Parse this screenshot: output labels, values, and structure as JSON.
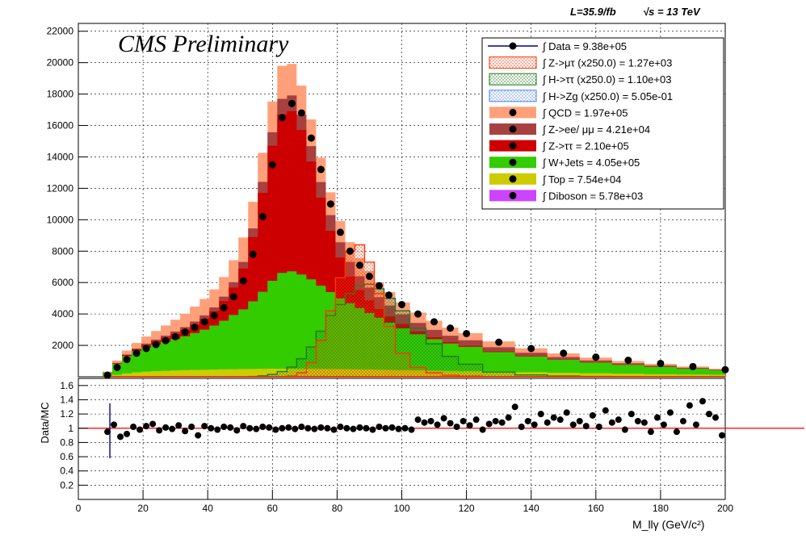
{
  "header": {
    "lumi": "L=35.9/fb",
    "energy": "√s = 13 TeV"
  },
  "main": {
    "watermark": "CMS Preliminary"
  },
  "colors": {
    "data": "#000000",
    "data_line": "#00008b",
    "zmt": "#ff3300",
    "htt": "#1e7a1e",
    "hzg": "#4d7fff",
    "qcd": "#ffa07a",
    "zll": "#a84040",
    "ztt": "#cc0000",
    "wjets": "#33cc00",
    "top": "#cccc00",
    "diboson": "#cc44ff",
    "ratio_line": "#ff0000"
  },
  "chart_data": [
    {
      "type": "area",
      "xlabel": "M_llγ (GeV/c²)",
      "ylabel": "",
      "xlim": [
        0,
        200
      ],
      "ylim": [
        0,
        22500
      ],
      "grid": true,
      "legend_position": "top-right",
      "x_ticks": [
        0,
        20,
        40,
        60,
        80,
        100,
        120,
        140,
        160,
        180,
        200
      ],
      "y_ticks": [
        2000,
        4000,
        6000,
        8000,
        10000,
        12000,
        14000,
        16000,
        18000,
        20000,
        22000
      ],
      "x": [
        9,
        12,
        15,
        18,
        21,
        24,
        27,
        30,
        33,
        36,
        39,
        42,
        45,
        48,
        51,
        54,
        57,
        60,
        63,
        66,
        69,
        72,
        75,
        78,
        81,
        84,
        87,
        90,
        93,
        96,
        100,
        105,
        110,
        115,
        120,
        130,
        140,
        150,
        160,
        170,
        180,
        190,
        200
      ],
      "series": [
        {
          "name": "Data = 9.38e+05",
          "key": "data",
          "style": "points",
          "values": [
            100,
            600,
            1100,
            1500,
            1800,
            2050,
            2300,
            2550,
            2850,
            3150,
            3500,
            3900,
            4400,
            5100,
            6100,
            7800,
            10200,
            13500,
            16500,
            17400,
            16800,
            15200,
            13200,
            11000,
            9200,
            8000,
            7100,
            6400,
            5800,
            5200,
            4600,
            4000,
            3500,
            3100,
            2750,
            2200,
            1800,
            1500,
            1250,
            1050,
            850,
            650,
            450
          ]
        },
        {
          "name": "Diboson = 5.78e+03",
          "key": "diboson",
          "style": "stack",
          "values": [
            5,
            10,
            15,
            20,
            25,
            28,
            30,
            32,
            34,
            36,
            38,
            40,
            42,
            44,
            46,
            48,
            50,
            52,
            54,
            56,
            56,
            56,
            55,
            54,
            52,
            50,
            48,
            46,
            44,
            42,
            40,
            36,
            33,
            30,
            28,
            24,
            20,
            17,
            14,
            12,
            10,
            8,
            6
          ]
        },
        {
          "name": "Top = 7.54e+04",
          "key": "top",
          "style": "stack",
          "values": [
            50,
            120,
            200,
            260,
            300,
            330,
            350,
            370,
            390,
            400,
            410,
            420,
            430,
            440,
            450,
            455,
            460,
            460,
            460,
            460,
            455,
            450,
            445,
            440,
            435,
            430,
            425,
            420,
            410,
            400,
            390,
            375,
            360,
            345,
            330,
            300,
            270,
            240,
            210,
            185,
            160,
            140,
            120
          ]
        },
        {
          "name": "W+Jets = 4.05e+05",
          "key": "wjets",
          "style": "stack",
          "values": [
            200,
            700,
            1100,
            1350,
            1550,
            1700,
            1850,
            2000,
            2150,
            2350,
            2550,
            2800,
            3100,
            3450,
            3800,
            4300,
            4900,
            5600,
            6100,
            6200,
            6000,
            5700,
            5300,
            4900,
            4500,
            4200,
            3900,
            3600,
            3300,
            3000,
            2650,
            2300,
            2000,
            1750,
            1550,
            1250,
            1000,
            820,
            680,
            560,
            460,
            360,
            280
          ]
        },
        {
          "name": "Z->ττ = 2.10e+05",
          "key": "ztt",
          "style": "stack",
          "values": [
            10,
            30,
            60,
            100,
            150,
            200,
            260,
            330,
            420,
            540,
            700,
            920,
            1250,
            1750,
            2600,
            4100,
            6300,
            8600,
            10100,
            10200,
            9200,
            7500,
            5600,
            3900,
            2600,
            1700,
            1150,
            800,
            560,
            400,
            280,
            180,
            120,
            80,
            55,
            30,
            18,
            10,
            6,
            4,
            3,
            2,
            1
          ]
        },
        {
          "name": "Z->ee/ μμ = 4.21e+04",
          "key": "zll",
          "style": "stack",
          "values": [
            10,
            25,
            45,
            70,
            90,
            110,
            130,
            150,
            170,
            190,
            210,
            240,
            280,
            340,
            420,
            540,
            700,
            860,
            980,
            1000,
            980,
            980,
            1000,
            1000,
            980,
            940,
            880,
            820,
            760,
            700,
            620,
            540,
            470,
            410,
            360,
            280,
            220,
            170,
            130,
            100,
            80,
            60,
            45
          ]
        },
        {
          "name": "QCD = 1.97e+05",
          "key": "qcd",
          "style": "stack",
          "values": [
            50,
            150,
            250,
            350,
            450,
            550,
            650,
            750,
            850,
            950,
            1050,
            1150,
            1250,
            1400,
            1550,
            1700,
            1850,
            1950,
            2100,
            2000,
            1850,
            1700,
            1550,
            1450,
            1350,
            1250,
            1150,
            1050,
            950,
            850,
            750,
            650,
            580,
            520,
            460,
            370,
            290,
            230,
            180,
            140,
            110,
            85,
            60
          ]
        },
        {
          "name": "H->Zg (x250.0) = 5.05e-01",
          "key": "hzg",
          "style": "line",
          "values": [
            0,
            0,
            0,
            0,
            0,
            0,
            0,
            0,
            0,
            0,
            0,
            0,
            0,
            0,
            0,
            0,
            0,
            0,
            0,
            0,
            0,
            0,
            0,
            0,
            0,
            0,
            0,
            0,
            0,
            0,
            0,
            0,
            0,
            0,
            0,
            0,
            0,
            0,
            0,
            0,
            0,
            0,
            0
          ]
        },
        {
          "name": "H->ττ (x250.0) = 1.10e+03",
          "key": "htt",
          "style": "line",
          "values": [
            0,
            0,
            0,
            0,
            0,
            0,
            0,
            0,
            0,
            0,
            0,
            0,
            0,
            0,
            0,
            20,
            60,
            150,
            330,
            620,
            1150,
            1900,
            2900,
            3900,
            4600,
            5300,
            5800,
            5900,
            5600,
            5000,
            4200,
            3100,
            2100,
            1300,
            800,
            300,
            120,
            50,
            20,
            10,
            5,
            2,
            0
          ]
        },
        {
          "name": "Z->μτ (x250.0) = 1.27e+03",
          "key": "zmt",
          "style": "line",
          "values": [
            0,
            0,
            0,
            0,
            0,
            0,
            0,
            0,
            0,
            0,
            0,
            0,
            0,
            0,
            0,
            0,
            0,
            0,
            0,
            50,
            250,
            900,
            2300,
            4200,
            6300,
            8000,
            8400,
            7300,
            5300,
            3200,
            1500,
            600,
            250,
            100,
            40,
            10,
            0,
            0,
            0,
            0,
            0,
            0,
            0
          ]
        }
      ]
    },
    {
      "type": "scatter",
      "xlabel": "",
      "ylabel": "Data/MC",
      "xlim": [
        0,
        200
      ],
      "ylim": [
        0,
        1.7
      ],
      "grid": true,
      "reference_line": 1,
      "x_ticks": [
        0,
        20,
        40,
        60,
        80,
        100,
        120,
        140,
        160,
        180,
        200
      ],
      "y_ticks": [
        0.2,
        0.4,
        0.6,
        0.8,
        1,
        1.2,
        1.4,
        1.6
      ],
      "series": [
        {
          "name": "",
          "key": "ratio",
          "x": [
            9,
            11,
            13,
            15,
            17,
            19,
            21,
            23,
            25,
            27,
            29,
            31,
            33,
            35,
            37,
            39,
            41,
            43,
            45,
            47,
            49,
            51,
            53,
            55,
            57,
            59,
            61,
            63,
            65,
            67,
            69,
            71,
            73,
            75,
            77,
            79,
            81,
            83,
            85,
            87,
            89,
            91,
            93,
            95,
            97,
            99,
            101,
            103,
            105,
            107,
            109,
            111,
            113,
            115,
            117,
            119,
            121,
            123,
            125,
            127,
            129,
            131,
            133,
            135,
            137,
            139,
            141,
            143,
            145,
            147,
            149,
            151,
            153,
            155,
            157,
            159,
            161,
            163,
            165,
            167,
            169,
            171,
            173,
            175,
            177,
            179,
            181,
            183,
            185,
            187,
            189,
            191,
            193,
            195,
            197,
            199
          ],
          "values": [
            0.95,
            1.05,
            0.88,
            0.92,
            1.02,
            0.98,
            1.03,
            1.06,
            0.97,
            1.01,
            0.99,
            1.04,
            0.96,
            1.02,
            0.9,
            1.03,
            1.0,
            0.98,
            1.02,
            1.01,
            0.97,
            1.03,
            1.0,
            0.99,
            1.02,
            1.01,
            0.98,
            1.0,
            1.01,
            0.99,
            1.02,
            1.0,
            0.99,
            1.01,
            1.0,
            0.98,
            1.02,
            1.0,
            0.99,
            1.01,
            1.0,
            0.98,
            1.02,
            1.0,
            1.01,
            0.99,
            1.0,
            0.98,
            1.12,
            1.08,
            1.1,
            1.05,
            1.14,
            1.07,
            1.02,
            1.1,
            1.04,
            1.12,
            0.98,
            1.06,
            1.1,
            1.08,
            1.15,
            1.3,
            1.02,
            1.1,
            1.05,
            1.2,
            1.08,
            1.15,
            1.12,
            1.22,
            1.05,
            1.1,
            1.03,
            1.18,
            1.02,
            1.25,
            1.08,
            1.12,
            0.98,
            1.2,
            1.1,
            1.08,
            0.95,
            1.15,
            1.05,
            1.22,
            0.95,
            1.1,
            1.32,
            1.05,
            1.38,
            1.2,
            1.15,
            0.9
          ]
        }
      ]
    }
  ]
}
